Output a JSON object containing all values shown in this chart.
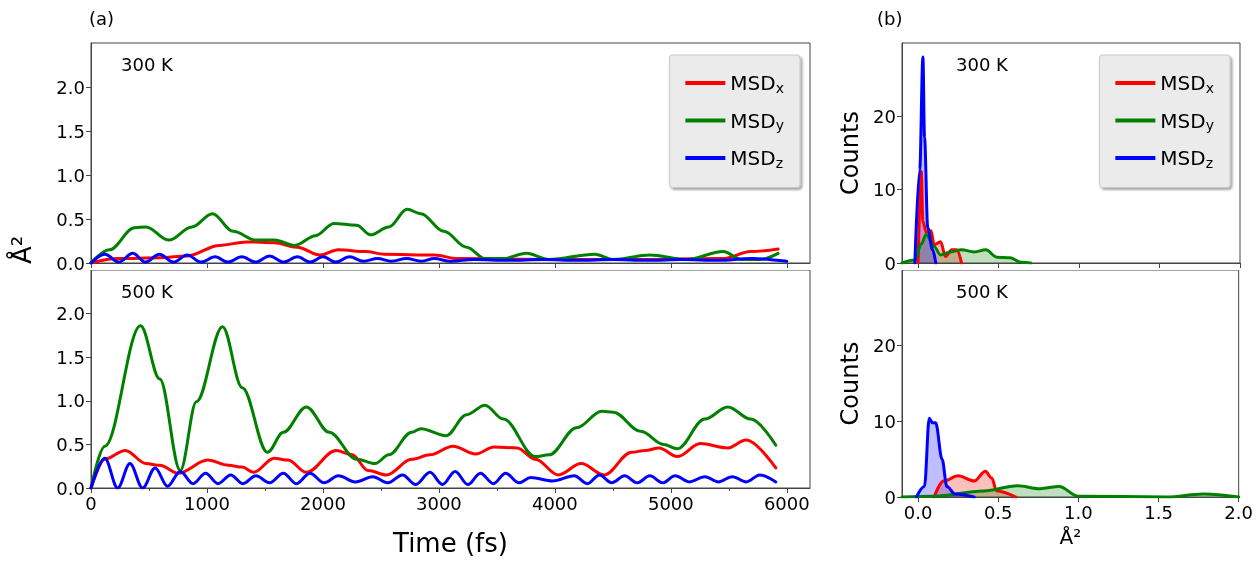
{
  "chart_data": [
    {
      "type": "line",
      "title": "(a)",
      "ylabel": "Å²",
      "annotations": [
        "300 K"
      ],
      "xlim": [
        0,
        6200
      ],
      "xticks": [
        0,
        1000,
        2000,
        3000,
        4000,
        5000,
        6000
      ],
      "ylim": [
        0,
        2.5
      ],
      "yticks": [
        {
          "value": 0,
          "label": "0.0"
        },
        0.5,
        {
          "value": 1,
          "label": "1.0"
        },
        1.5,
        {
          "value": 2,
          "label": "2.0"
        }
      ],
      "tick_labels": "y",
      "grid": false,
      "legend": "top right",
      "marker": "none",
      "line_style": "solid",
      "series": [
        {
          "name": "MSD$_{x}$",
          "color": "#ff0000",
          "x": [
            0,
            237,
            593,
            830,
            1106,
            1343,
            1580,
            1778,
            1975,
            2133,
            2370,
            2528,
            2963,
            3160,
            3950,
            4740,
            5451,
            5688,
            5925
          ],
          "values": [
            0,
            0.05,
            0.06,
            0.08,
            0.2,
            0.24,
            0.23,
            0.18,
            0.09,
            0.15,
            0.13,
            0.1,
            0.09,
            0.05,
            0.04,
            0.04,
            0.05,
            0.13,
            0.16
          ]
        },
        {
          "name": "MSD$_{y}$",
          "color": "#008000",
          "x": [
            0,
            158,
            375,
            474,
            672,
            869,
            1047,
            1225,
            1422,
            1580,
            1758,
            1936,
            2094,
            2291,
            2410,
            2568,
            2726,
            2844,
            3042,
            3239,
            3397,
            3555,
            3753,
            3950,
            4345,
            4503,
            4819,
            5135,
            5451,
            5609,
            5767,
            5925
          ],
          "values": [
            0,
            0.15,
            0.4,
            0.41,
            0.26,
            0.41,
            0.56,
            0.36,
            0.26,
            0.26,
            0.2,
            0.31,
            0.45,
            0.43,
            0.32,
            0.41,
            0.61,
            0.56,
            0.36,
            0.18,
            0.05,
            0.05,
            0.11,
            0.04,
            0.1,
            0.04,
            0.09,
            0.04,
            0.13,
            0.04,
            0.04,
            0.11
          ]
        },
        {
          "name": "MSD$_{z}$",
          "color": "#0000ff",
          "x": [
            0,
            120,
            240,
            360,
            470,
            590,
            710,
            830,
            950,
            1070,
            1180,
            1300,
            1420,
            1540,
            1660,
            1780,
            1890,
            2000,
            2110,
            2230,
            2350,
            2470,
            2590,
            2720,
            2850,
            2960,
            3100,
            3300,
            3600,
            3900,
            4200,
            4500,
            4800,
            5100,
            5400,
            5700,
            6000
          ],
          "values": [
            0,
            0.1,
            0.01,
            0.11,
            0.01,
            0.1,
            0.01,
            0.09,
            0.01,
            0.07,
            0.01,
            0.07,
            0.01,
            0.08,
            0.01,
            0.07,
            0.01,
            0.07,
            0.01,
            0.07,
            0.02,
            0.05,
            0.02,
            0.05,
            0.02,
            0.05,
            0.02,
            0.04,
            0.03,
            0.04,
            0.03,
            0.04,
            0.03,
            0.04,
            0.03,
            0.05,
            0.02
          ]
        }
      ]
    },
    {
      "type": "line",
      "xlabel": "Time (fs)",
      "annotations": [
        "500 K"
      ],
      "xlim": [
        0,
        6200
      ],
      "xticks": [
        0,
        1000,
        2000,
        3000,
        4000,
        5000,
        6000
      ],
      "ylim": [
        0,
        2.5
      ],
      "yticks": [
        {
          "value": 0,
          "label": "0.0"
        },
        0.5,
        {
          "value": 1,
          "label": "1.0"
        },
        1.5,
        {
          "value": 2,
          "label": "2.0"
        }
      ],
      "grid": false,
      "marker": "none",
      "line_style": "solid",
      "series": [
        {
          "color": "#ff0000",
          "x": [
            0,
            119,
            296,
            474,
            593,
            751,
            1007,
            1185,
            1304,
            1402,
            1580,
            1699,
            1857,
            2113,
            2252,
            2390,
            2548,
            2765,
            2923,
            3121,
            3318,
            3476,
            3674,
            3832,
            4029,
            4227,
            4424,
            4661,
            4780,
            4898,
            5056,
            5254,
            5491,
            5649,
            5905
          ],
          "values": [
            0,
            0.33,
            0.43,
            0.28,
            0.26,
            0.17,
            0.32,
            0.26,
            0.24,
            0.18,
            0.34,
            0.32,
            0.18,
            0.43,
            0.38,
            0.2,
            0.15,
            0.33,
            0.38,
            0.48,
            0.39,
            0.47,
            0.46,
            0.33,
            0.15,
            0.28,
            0.15,
            0.41,
            0.43,
            0.46,
            0.36,
            0.51,
            0.46,
            0.55,
            0.23
          ]
        },
        {
          "color": "#008000",
          "x": [
            0,
            119,
            427,
            593,
            770,
            909,
            1134,
            1304,
            1521,
            1659,
            1857,
            2054,
            2291,
            2449,
            2568,
            2765,
            2844,
            3061,
            3239,
            3397,
            3555,
            3832,
            3950,
            4187,
            4404,
            4503,
            4740,
            4938,
            5056,
            5293,
            5491,
            5688,
            5905
          ],
          "values": [
            0,
            0.48,
            1.86,
            1.25,
            0.2,
            0.99,
            1.85,
            1.15,
            0.41,
            0.64,
            0.93,
            0.64,
            0.33,
            0.28,
            0.38,
            0.64,
            0.68,
            0.6,
            0.84,
            0.95,
            0.79,
            0.36,
            0.38,
            0.69,
            0.88,
            0.87,
            0.65,
            0.5,
            0.45,
            0.79,
            0.93,
            0.79,
            0.49
          ]
        },
        {
          "color": "#0000ff",
          "x": [
            0,
            119,
            230,
            336,
            445,
            553,
            660,
            770,
            880,
            988,
            1095,
            1205,
            1310,
            1422,
            1540,
            1659,
            1770,
            1888,
            2010,
            2133,
            2280,
            2429,
            2560,
            2686,
            2800,
            2923,
            3030,
            3140,
            3250,
            3358,
            3470,
            3575,
            3690,
            3792,
            3980,
            4167,
            4280,
            4385,
            4490,
            4602,
            4710,
            4819,
            4930,
            5036,
            5160,
            5293,
            5410,
            5530,
            5650,
            5767,
            5905
          ],
          "values": [
            0,
            0.34,
            0,
            0.28,
            0,
            0.23,
            0.02,
            0.19,
            0.05,
            0.17,
            0.05,
            0.15,
            0.05,
            0.14,
            0.06,
            0.17,
            0.05,
            0.17,
            0.06,
            0.14,
            0.07,
            0.13,
            0.06,
            0.15,
            0.04,
            0.18,
            0.04,
            0.19,
            0.04,
            0.17,
            0.05,
            0.17,
            0.06,
            0.12,
            0.08,
            0.14,
            0.05,
            0.15,
            0.06,
            0.14,
            0.06,
            0.14,
            0.06,
            0.14,
            0.07,
            0.13,
            0.07,
            0.13,
            0.07,
            0.15,
            0.07
          ]
        }
      ]
    },
    {
      "type": "area",
      "title": "(b)",
      "ylabel": "Counts",
      "annotations": [
        "300 K"
      ],
      "xlim": [
        -0.1,
        2.0
      ],
      "xticks": [
        0,
        0.5,
        1,
        1.5,
        2
      ],
      "ylim": [
        0,
        30
      ],
      "yticks": [
        0,
        10,
        20
      ],
      "tick_labels": "y",
      "grid": false,
      "legend": "top right",
      "marker": "none",
      "line_style": "solid",
      "series": [
        {
          "name": "MSD$_{x}$",
          "color": "#ff0000",
          "x": [
            0.0,
            0.02,
            0.03,
            0.05,
            0.08,
            0.1,
            0.14,
            0.17,
            0.21,
            0.24,
            0.27
          ],
          "values": [
            0,
            12.5,
            5.7,
            4.2,
            4.4,
            2.5,
            2.9,
            0.9,
            1.8,
            1.8,
            0
          ]
        },
        {
          "name": "MSD$_{y}$",
          "color": "#008000",
          "x": [
            -0.1,
            -0.02,
            0.02,
            0.05,
            0.1,
            0.14,
            0.2,
            0.27,
            0.35,
            0.42,
            0.49,
            0.57,
            0.64,
            0.7
          ],
          "values": [
            0,
            0.4,
            2.6,
            3.9,
            2.2,
            1.1,
            1.5,
            1.8,
            1.5,
            1.8,
            0.8,
            0.7,
            0.1,
            0
          ]
        },
        {
          "name": "MSD$_{z}$",
          "color": "#0000ff",
          "x": [
            -0.02,
            0.01,
            0.03,
            0.04,
            0.06,
            0.09,
            0.11
          ],
          "values": [
            0,
            12.7,
            28.1,
            17.1,
            4.8,
            1.8,
            0
          ]
        }
      ]
    },
    {
      "type": "area",
      "xlabel": "Å²",
      "ylabel": "Counts",
      "annotations": [
        "500 K"
      ],
      "xlim": [
        -0.1,
        2.0
      ],
      "xticks": [
        {
          "value": 0,
          "label": "0.0"
        },
        0.5,
        {
          "value": 1,
          "label": "1.0"
        },
        1.5,
        {
          "value": 2,
          "label": "2.0"
        }
      ],
      "ylim": [
        0,
        30
      ],
      "yticks": [
        0,
        10,
        20
      ],
      "grid": false,
      "marker": "none",
      "line_style": "solid",
      "series": [
        {
          "color": "#ff0000",
          "x": [
            0.1,
            0.16,
            0.25,
            0.35,
            0.42,
            0.46,
            0.49,
            0.61
          ],
          "values": [
            0,
            2.1,
            2.8,
            2.1,
            3.4,
            2.5,
            0.8,
            0
          ]
        },
        {
          "color": "#008000",
          "x": [
            -0.1,
            0.1,
            0.41,
            0.62,
            0.76,
            0.88,
            1.0,
            1.55,
            1.78,
            2.0
          ],
          "values": [
            0,
            0.1,
            0.8,
            1.5,
            1.1,
            1.4,
            0.1,
            0,
            0.4,
            0
          ]
        },
        {
          "color": "#0000ff",
          "x": [
            -0.01,
            0.04,
            0.07,
            0.09,
            0.11,
            0.15,
            0.18,
            0.23,
            0.35
          ],
          "values": [
            0,
            1.4,
            10.4,
            9.8,
            9.8,
            5.0,
            1.4,
            0.4,
            0
          ]
        }
      ]
    }
  ]
}
